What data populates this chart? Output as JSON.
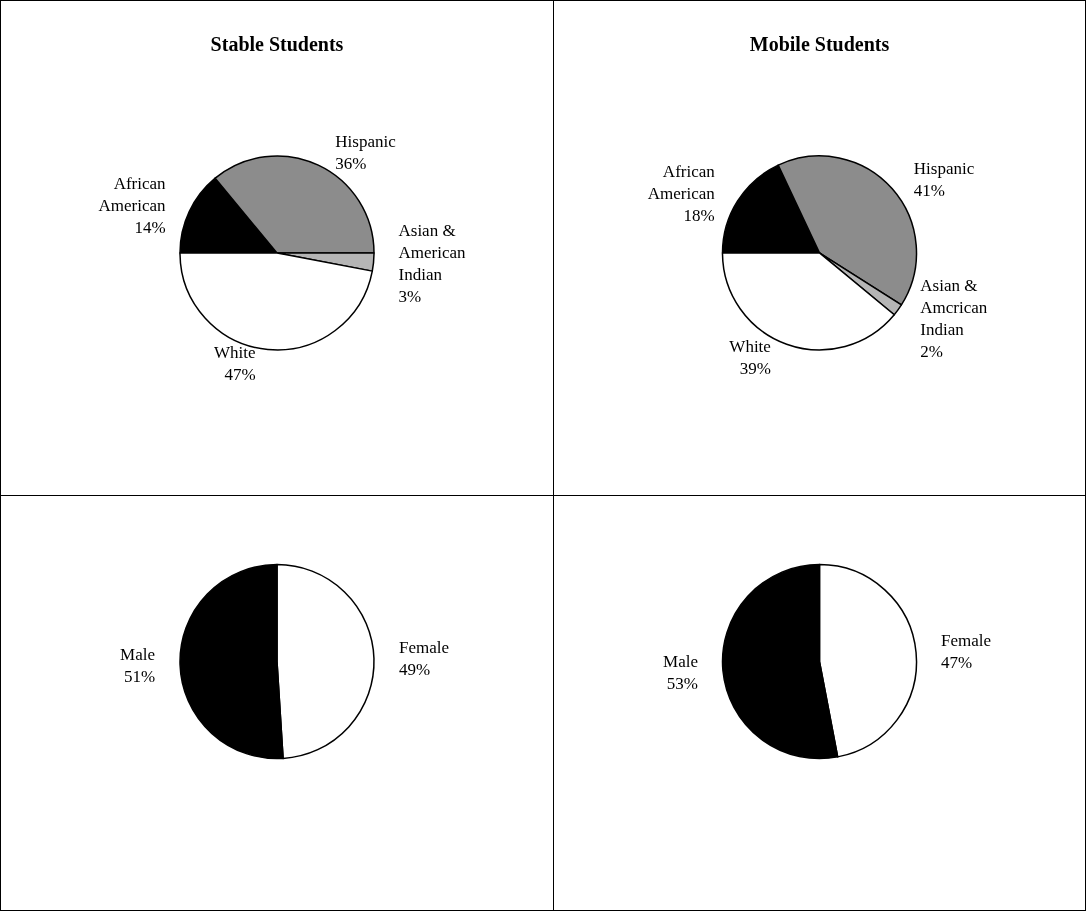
{
  "chart_data": [
    {
      "type": "pie",
      "title": "Stable Students",
      "categories": [
        "African\nAmerican",
        "Hispanic",
        "Asian &\nAmerican\nIndian",
        "White"
      ],
      "values": [
        14,
        36,
        3,
        47
      ],
      "value_labels": [
        "14%",
        "36%",
        "3%",
        "47%"
      ],
      "colors": [
        "#000000",
        "#8c8c8c",
        "#b5b5b5",
        "#ffffff"
      ],
      "legend": false
    },
    {
      "type": "pie",
      "title": "Mobile Students",
      "categories": [
        "African\nAmerican",
        "Hispanic",
        "Asian &\nAmcrican\nIndian",
        "White"
      ],
      "values": [
        18,
        41,
        2,
        39
      ],
      "value_labels": [
        "18%",
        "41%",
        "2%",
        "39%"
      ],
      "colors": [
        "#000000",
        "#8c8c8c",
        "#b5b5b5",
        "#ffffff"
      ],
      "legend": false
    },
    {
      "type": "pie",
      "categories": [
        "Female",
        "Male"
      ],
      "values": [
        49,
        51
      ],
      "value_labels": [
        "49%",
        "51%"
      ],
      "colors": [
        "#ffffff",
        "#000000"
      ],
      "legend": false
    },
    {
      "type": "pie",
      "categories": [
        "Female",
        "Male"
      ],
      "values": [
        47,
        53
      ],
      "value_labels": [
        "47%",
        "53%"
      ],
      "colors": [
        "#ffffff",
        "#000000"
      ],
      "legend": false
    }
  ]
}
